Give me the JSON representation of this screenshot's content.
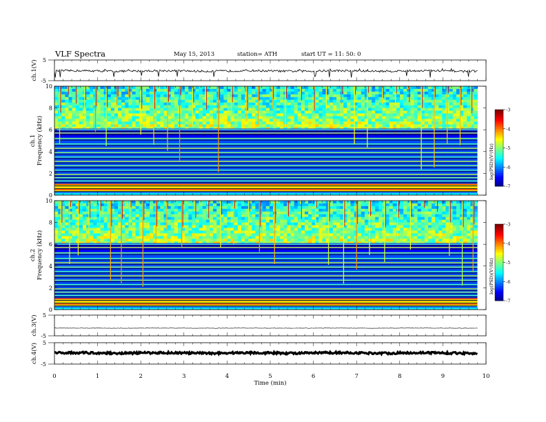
{
  "header": {
    "title": "VLF  Spectra",
    "date": "May 15, 2013",
    "station": "station= ATH",
    "start": "start  UT  =    11: 50: 0"
  },
  "chart_data": [
    {
      "type": "line",
      "panel": "ch1-waveform",
      "ylabel": "ch.1(V)",
      "ylim": [
        -5,
        5
      ],
      "yticks": [
        "5",
        "-5"
      ],
      "baseline_v": -0.3,
      "noise_amplitude_v": 0.5,
      "spike_min_v": -3.5,
      "spike_max_v": 1.2,
      "x_end_min": 9.8
    },
    {
      "type": "heatmap",
      "panel": "ch1-spectrogram",
      "ylabel": "ch.1 Frequency (kHz)",
      "ylim": [
        0,
        10
      ],
      "yticks": [
        "0",
        "2",
        "4",
        "6",
        "8",
        "10"
      ],
      "x_end_min": 9.8,
      "colorbar": {
        "label": "log(PSD)(V²/Hz)",
        "range": [
          -7,
          -3
        ],
        "ticks": [
          "-3",
          "-4",
          "-5",
          "-6",
          "-7"
        ]
      },
      "spectral_lines_khz": [
        0.5,
        0.75,
        1.0,
        1.3,
        1.6,
        1.9,
        2.3,
        2.7,
        3.1,
        3.5,
        3.9,
        4.3,
        4.7,
        5.2,
        5.7,
        6.0
      ],
      "sferic_times_min": [
        0.12,
        0.3,
        0.48,
        0.7,
        0.95,
        1.2,
        1.45,
        1.72,
        2.0,
        2.3,
        2.62,
        2.9,
        3.2,
        3.5,
        3.8,
        4.1,
        4.45,
        4.72,
        5.05,
        5.35,
        5.7,
        6.0,
        6.3,
        6.65,
        6.95,
        7.25,
        7.6,
        7.9,
        8.2,
        8.5,
        8.8,
        9.1,
        9.4,
        9.65
      ]
    },
    {
      "type": "heatmap",
      "panel": "ch2-spectrogram",
      "ylabel": "ch.2 Frequency (kHz)",
      "ylim": [
        0,
        10
      ],
      "yticks": [
        "0",
        "2",
        "4",
        "6",
        "8",
        "10"
      ],
      "x_end_min": 9.8,
      "colorbar": {
        "label": "log(PSD)(V²/Hz)",
        "range": [
          -7,
          -3
        ],
        "ticks": [
          "-3",
          "-4",
          "-5",
          "-6",
          "-7"
        ]
      },
      "spectral_lines_khz": [
        0.5,
        0.75,
        1.0,
        1.3,
        1.6,
        1.9,
        2.3,
        2.7,
        3.1,
        3.5,
        3.9,
        4.3,
        4.7,
        5.2,
        5.7,
        6.0
      ],
      "sferic_times_min": [
        0.15,
        0.35,
        0.55,
        0.8,
        1.05,
        1.3,
        1.55,
        1.75,
        2.05,
        2.35,
        2.6,
        2.95,
        3.25,
        3.55,
        3.85,
        4.15,
        4.5,
        4.75,
        5.1,
        5.4,
        5.7,
        6.05,
        6.35,
        6.7,
        7.0,
        7.3,
        7.65,
        7.95,
        8.25,
        8.55,
        8.85,
        9.15,
        9.45,
        9.7
      ]
    },
    {
      "type": "line",
      "panel": "ch3-waveform",
      "ylabel": "ch.3(V)",
      "ylim": [
        -5,
        5
      ],
      "yticks": [
        "5",
        "-5"
      ],
      "baseline_v": -1.3,
      "noise_amplitude_v": 0.1,
      "x_end_min": 9.8
    },
    {
      "type": "line",
      "panel": "ch4-waveform",
      "ylabel": "ch.4(V)",
      "ylim": [
        -5,
        5
      ],
      "yticks": [
        "5",
        "-5"
      ],
      "baseline_v": 0.2,
      "noise_amplitude_v": 0.45,
      "x_end_min": 9.8
    }
  ],
  "x_axis": {
    "label": "Time  (min)",
    "xlim": [
      0,
      10
    ],
    "ticks": [
      "0",
      "1",
      "2",
      "3",
      "4",
      "5",
      "6",
      "7",
      "8",
      "9",
      "10"
    ]
  }
}
